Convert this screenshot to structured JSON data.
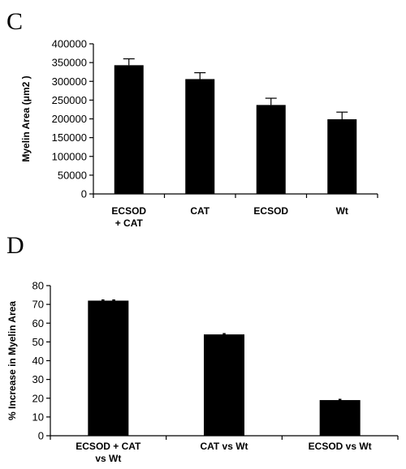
{
  "panels": {
    "c_letter": "C",
    "d_letter": "D"
  },
  "chart_data": [
    {
      "type": "bar",
      "ylabel": "Myelin Area (μm2 )",
      "ylim": [
        0,
        400000
      ],
      "yticks": [
        0,
        50000,
        100000,
        150000,
        200000,
        250000,
        300000,
        350000,
        400000
      ],
      "categories": [
        [
          "ECSOD",
          "+ CAT"
        ],
        [
          "CAT"
        ],
        [
          "ECSOD"
        ],
        [
          "Wt"
        ]
      ],
      "values": [
        343000,
        306000,
        237000,
        199000
      ],
      "errors": [
        17000,
        17000,
        18000,
        19000
      ],
      "bar_color": "#000000",
      "grid": false
    },
    {
      "type": "bar",
      "ylabel": "% Increase in Myelin Area",
      "ylim": [
        0,
        80
      ],
      "yticks": [
        0,
        10,
        20,
        30,
        40,
        50,
        60,
        70,
        80
      ],
      "categories": [
        [
          "ECSOD + CAT",
          "vs Wt"
        ],
        [
          "CAT vs Wt"
        ],
        [
          "ECSOD vs Wt"
        ]
      ],
      "values": [
        72,
        54,
        19
      ],
      "annotations": [
        "**",
        "*",
        "*"
      ],
      "bar_color": "#000000",
      "grid": false
    }
  ]
}
